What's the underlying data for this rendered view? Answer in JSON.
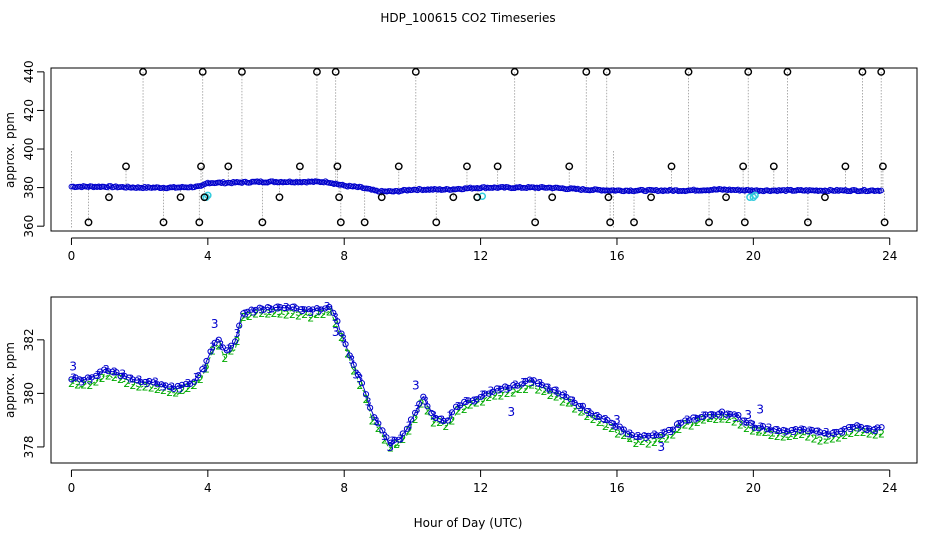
{
  "figure": {
    "title": "HDP_100615  CO2 Timeseries",
    "xlabel": "Hour of Day (UTC)"
  },
  "colors": {
    "outlier": "#000000",
    "flag_cyan": "#33ccdd",
    "series_blue": "#0000cc",
    "series_green": "#00aa00",
    "stem": "#999999"
  },
  "chart_data": [
    {
      "type": "scatter",
      "title": "",
      "xlabel": "",
      "ylabel": "approx. ppm",
      "xlim": [
        -0.6,
        24.8
      ],
      "ylim": [
        357.5,
        442
      ],
      "xticks": [
        0,
        4,
        8,
        12,
        16,
        20,
        24
      ],
      "yticks": [
        360,
        380,
        400,
        420,
        440
      ],
      "grid": false,
      "baseline_profile": {
        "x": [
          0,
          1,
          2,
          3,
          3.8,
          4.0,
          4.6,
          5.5,
          6.5,
          7.5,
          8.0,
          8.5,
          9.0,
          9.5,
          10.0,
          11.0,
          12.0,
          13.0,
          14.0,
          15.0,
          16.0,
          17.0,
          18.0,
          19.0,
          20.0,
          21.0,
          22.0,
          23.0,
          23.8
        ],
        "y": [
          380.5,
          380.5,
          380,
          380,
          380.5,
          382.5,
          382.5,
          383,
          383,
          383,
          381,
          380,
          378,
          378,
          379,
          379,
          380,
          380,
          380,
          379,
          378.5,
          378.5,
          378.5,
          379,
          378.5,
          378.5,
          378.5,
          378.5,
          378.5
        ]
      },
      "outlier_points": {
        "x": [
          0.5,
          1.1,
          1.6,
          2.1,
          2.7,
          3.2,
          3.75,
          3.8,
          3.85,
          3.9,
          4.6,
          5.0,
          5.6,
          6.1,
          6.7,
          7.2,
          7.75,
          7.8,
          7.85,
          7.9,
          8.6,
          9.1,
          9.6,
          10.1,
          10.7,
          11.2,
          11.6,
          11.9,
          12.5,
          13.0,
          13.6,
          14.1,
          14.6,
          15.1,
          15.7,
          15.75,
          15.8,
          16.5,
          17.0,
          17.6,
          18.1,
          18.7,
          19.2,
          19.7,
          19.75,
          19.85,
          20.6,
          21.0,
          21.6,
          22.1,
          22.7,
          23.2,
          23.75,
          23.8,
          23.85
        ],
        "y": [
          362,
          375,
          391,
          440,
          362,
          375,
          362,
          391,
          440,
          375,
          391,
          440,
          362,
          375,
          391,
          440,
          440,
          391,
          375,
          362,
          362,
          375,
          391,
          440,
          362,
          375,
          391,
          375,
          391,
          440,
          362,
          375,
          391,
          440,
          440,
          375,
          362,
          362,
          375,
          391,
          440,
          362,
          375,
          391,
          362,
          440,
          391,
          440,
          362,
          375,
          391,
          440,
          440,
          391,
          362
        ]
      },
      "flag_points": {
        "x": [
          3.95,
          4.0,
          11.9,
          12.05,
          19.9,
          20.0,
          20.05
        ],
        "y": [
          375,
          376,
          375,
          375.5,
          375,
          375,
          376
        ]
      }
    },
    {
      "type": "scatter",
      "title": "",
      "xlabel": "",
      "ylabel": "approx. ppm",
      "xlim": [
        -0.6,
        24.8
      ],
      "ylim": [
        377.4,
        383.6
      ],
      "xticks": [
        0,
        4,
        8,
        12,
        16,
        20,
        24
      ],
      "yticks": [
        378,
        380,
        382
      ],
      "grid": false,
      "point_labels": [
        "3",
        "2"
      ],
      "profile": {
        "x": [
          0,
          0.3,
          0.6,
          1.0,
          1.5,
          2.0,
          2.5,
          3.0,
          3.3,
          3.6,
          3.9,
          4.1,
          4.3,
          4.5,
          4.8,
          5.0,
          5.5,
          6.0,
          6.5,
          7.0,
          7.4,
          7.6,
          7.8,
          8.0,
          8.2,
          8.4,
          8.6,
          8.8,
          9.0,
          9.3,
          9.6,
          9.8,
          10.0,
          10.3,
          10.6,
          11.0,
          11.3,
          11.6,
          12.0,
          12.3,
          12.6,
          13.0,
          13.5,
          14.0,
          14.5,
          15.0,
          15.5,
          16.0,
          16.5,
          17.0,
          17.5,
          18.0,
          18.5,
          19.0,
          19.5,
          20.0,
          20.5,
          21.0,
          21.5,
          22.0,
          22.5,
          23.0,
          23.5,
          23.8
        ],
        "y": [
          380.5,
          380.4,
          380.5,
          380.8,
          380.6,
          380.4,
          380.3,
          380.1,
          380.2,
          380.4,
          380.9,
          381.6,
          382.0,
          381.5,
          381.8,
          382.9,
          383.1,
          383.1,
          383.1,
          383.0,
          383.1,
          383.2,
          382.6,
          381.9,
          381.2,
          380.6,
          380.1,
          379.2,
          378.8,
          378.1,
          378.2,
          378.5,
          379.0,
          379.8,
          379.1,
          378.9,
          379.4,
          379.6,
          379.8,
          380.0,
          380.1,
          380.2,
          380.4,
          380.1,
          379.8,
          379.4,
          379.0,
          378.7,
          378.3,
          378.3,
          378.5,
          378.9,
          379.1,
          379.2,
          379.1,
          378.7,
          378.6,
          378.5,
          378.6,
          378.4,
          378.5,
          378.7,
          378.6,
          378.6
        ]
      },
      "jumps": [
        {
          "x": 0.05,
          "y": 381.0
        },
        {
          "x": 4.2,
          "y": 382.6
        },
        {
          "x": 7.75,
          "y": 382.3
        },
        {
          "x": 8.35,
          "y": 380.7
        },
        {
          "x": 9.35,
          "y": 378.0
        },
        {
          "x": 10.1,
          "y": 380.3
        },
        {
          "x": 12.9,
          "y": 379.3
        },
        {
          "x": 16.0,
          "y": 379.0
        },
        {
          "x": 17.3,
          "y": 378.0
        },
        {
          "x": 19.85,
          "y": 379.2
        },
        {
          "x": 20.2,
          "y": 379.4
        }
      ]
    }
  ]
}
